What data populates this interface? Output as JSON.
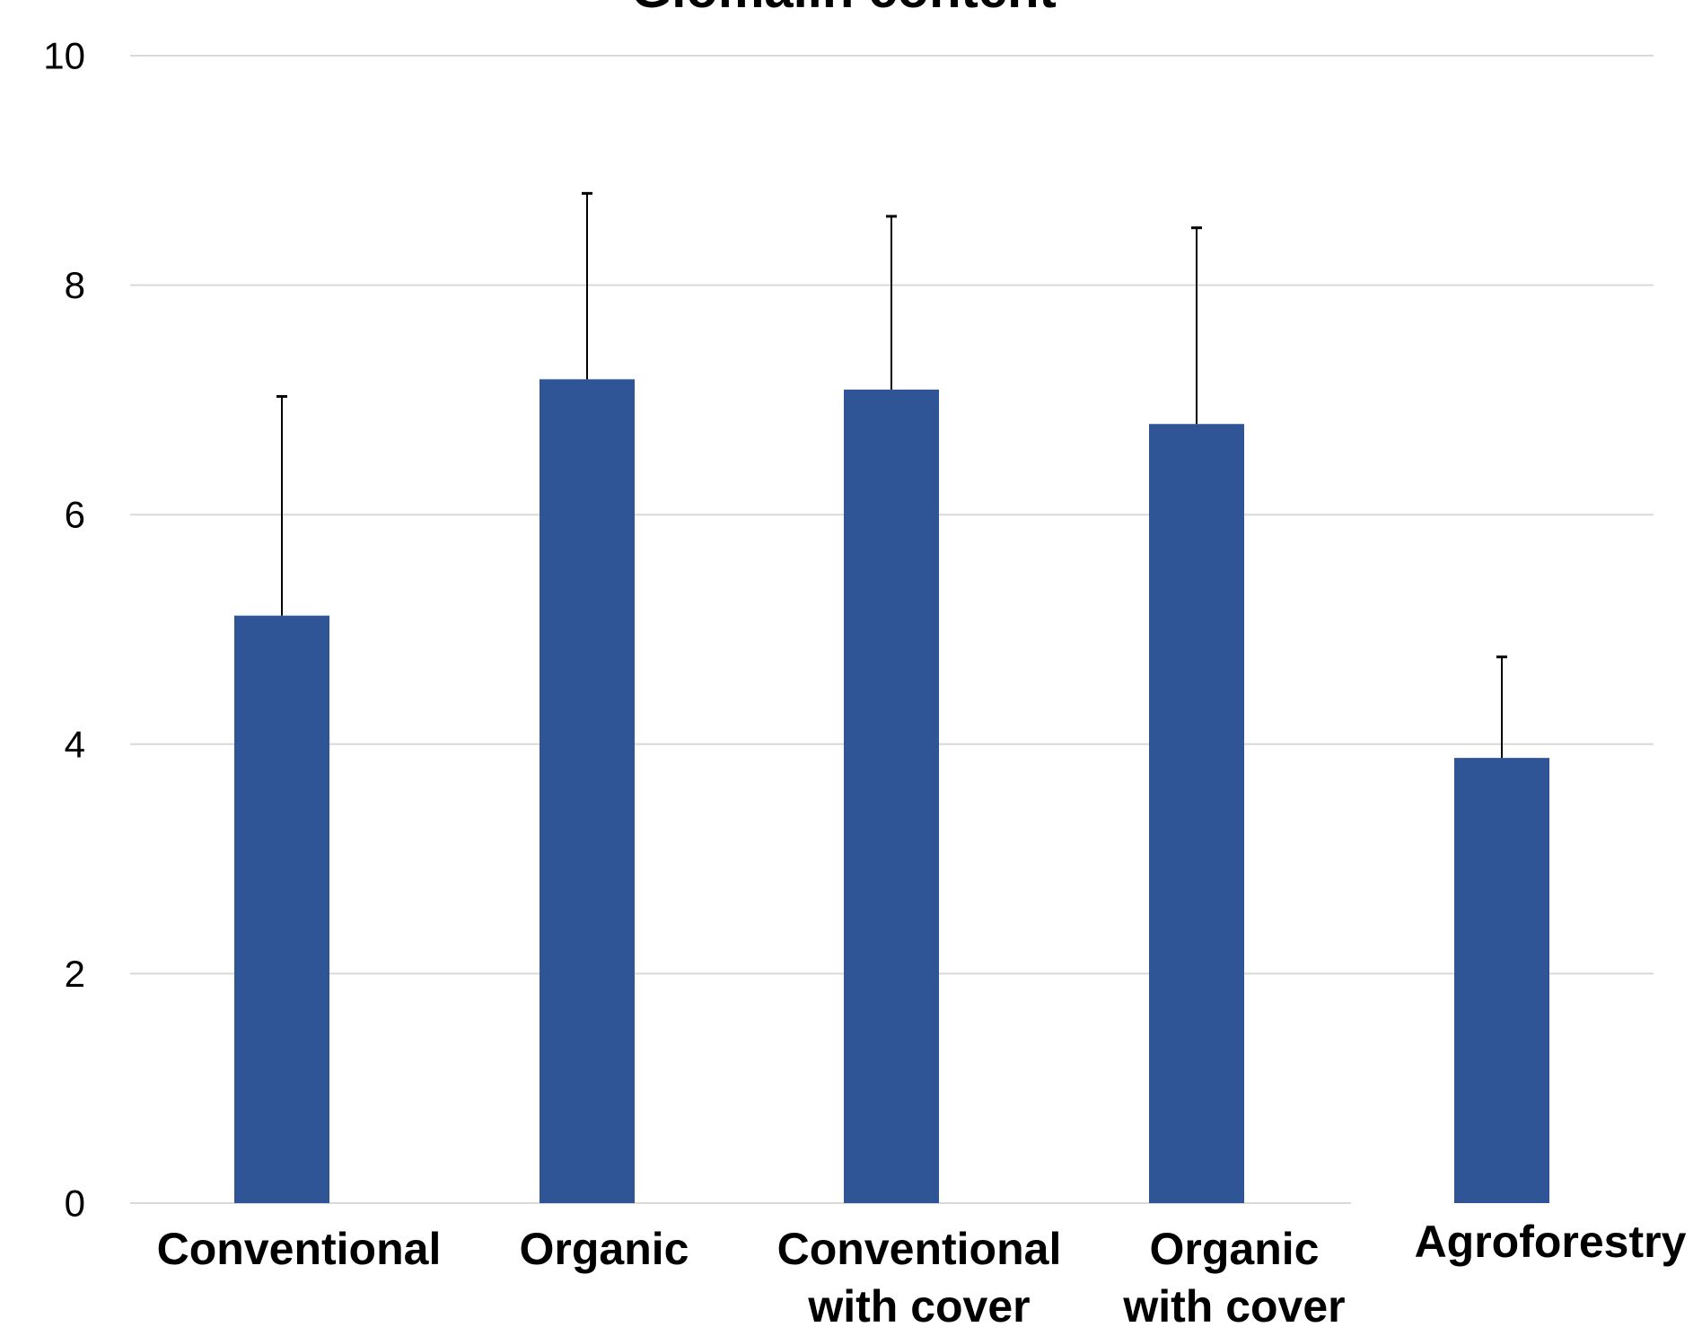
{
  "chart_data": {
    "type": "bar",
    "title": "Glomalin content",
    "xlabel": "",
    "ylabel": "",
    "categories": [
      [
        "Conventional"
      ],
      [
        "Organic"
      ],
      [
        "Conventional",
        "with cover"
      ],
      [
        "Organic",
        "with cover"
      ],
      [
        "Agroforestry"
      ]
    ],
    "values": [
      5.12,
      7.18,
      7.09,
      6.79,
      3.88
    ],
    "error_upper": [
      1.91,
      1.62,
      1.51,
      1.71,
      0.88
    ],
    "ylim": [
      0,
      10
    ],
    "yticks": [
      0,
      2,
      4,
      6,
      8,
      10
    ],
    "grid": true,
    "legend": "none",
    "colors": {
      "bar": "#2F5597",
      "gridline": "#D9D9D9",
      "error_bar": "#000000"
    }
  }
}
